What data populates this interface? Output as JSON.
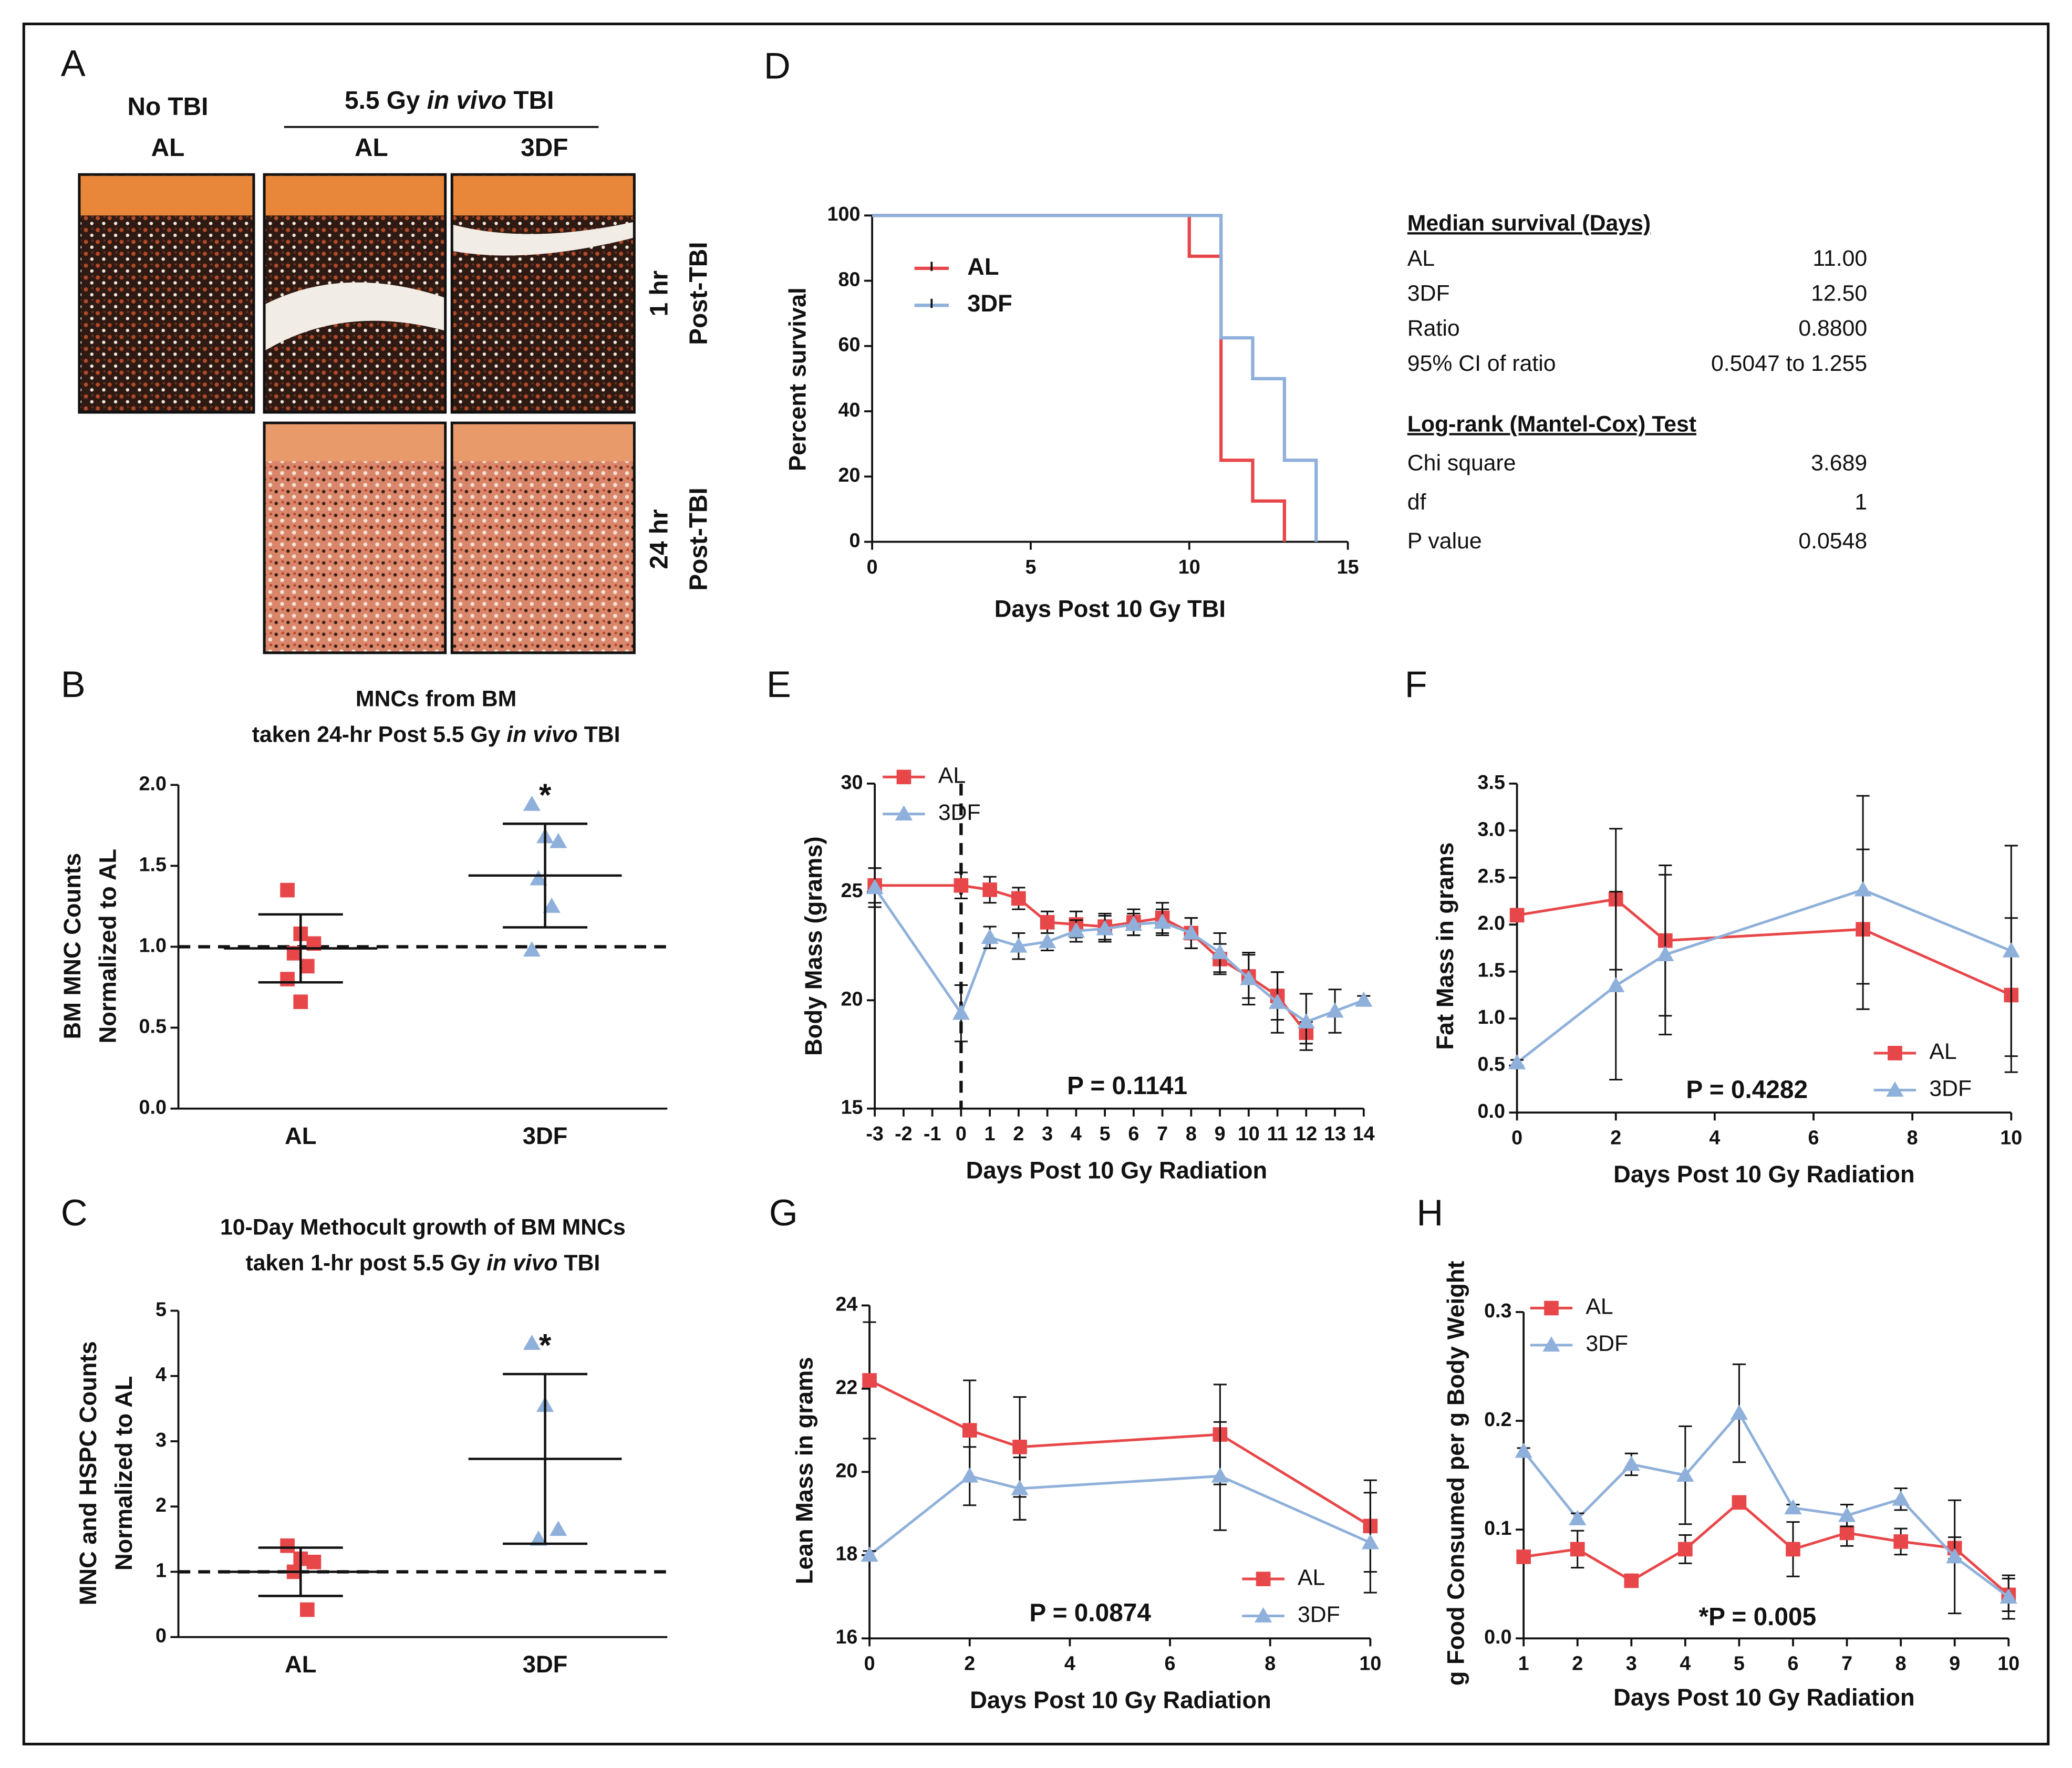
{
  "panel_a": {
    "label": "A",
    "no_tbi": "No TBI",
    "no_tbi_group": "AL",
    "treatment": [
      "5.5 Gy ",
      "in vivo",
      " TBI"
    ],
    "groups": [
      "AL",
      "3DF"
    ],
    "rows": [
      [
        "1 hr",
        "Post-TBI"
      ],
      [
        "24 hr",
        "Post-TBI"
      ]
    ]
  },
  "chart_data": [
    {
      "panel": "B",
      "type": "dot",
      "title": [
        [
          "MNCs from BM"
        ],
        [
          "taken 24-hr Post 5.5 Gy ",
          "in vivo",
          " TBI"
        ]
      ],
      "ylabel": [
        "BM MNC Counts",
        "Normalized to AL"
      ],
      "categories": [
        "AL",
        "3DF"
      ],
      "groups": [
        {
          "color": "#e8474a",
          "marker": "square",
          "values": [
            1.35,
            1.08,
            1.02,
            0.96,
            0.88,
            0.8,
            0.66
          ],
          "mean": 0.99,
          "sd": 0.21
        },
        {
          "color": "#8fb0da",
          "marker": "triangle",
          "values": [
            1.88,
            1.68,
            1.65,
            1.42,
            1.25,
            0.98
          ],
          "mean": 1.44,
          "sd": 0.32
        }
      ],
      "reference_line": 1,
      "annotation": "*",
      "ylim": [
        0,
        2
      ],
      "yticks": [
        {
          "value": 0,
          "label": "0.0"
        },
        0.5,
        {
          "value": 1,
          "label": "1.0"
        },
        1.5,
        {
          "value": 2,
          "label": "2.0"
        }
      ]
    },
    {
      "panel": "C",
      "type": "dot",
      "title": [
        [
          "10-Day Methocult growth of BM MNCs"
        ],
        [
          "taken 1-hr post 5.5 Gy ",
          "in vivo",
          " TBI"
        ]
      ],
      "ylabel": [
        "MNC and  HSPC Counts",
        "Normalized to AL"
      ],
      "categories": [
        "AL",
        "3DF"
      ],
      "groups": [
        {
          "color": "#e8474a",
          "marker": "square",
          "values": [
            1.4,
            1.2,
            1.15,
            1.0,
            0.42
          ],
          "mean": 1.0,
          "sd": 0.37
        },
        {
          "color": "#8fb0da",
          "marker": "triangle",
          "values": [
            4.5,
            3.55,
            1.65,
            1.5
          ],
          "mean": 2.73,
          "sd": 1.3
        }
      ],
      "reference_line": 1,
      "annotation": "*",
      "ylim": [
        0,
        5
      ],
      "yticks": [
        0,
        1,
        2,
        3,
        4,
        5
      ]
    },
    {
      "panel": "D",
      "type": "step",
      "xlabel": "Days Post 10 Gy TBI",
      "ylabel": "Percent survival",
      "series": [
        {
          "name": "AL",
          "color": "#e8474a",
          "x": [
            0,
            10,
            11,
            12,
            13
          ],
          "values": [
            100,
            87.5,
            25,
            12.5,
            0
          ]
        },
        {
          "name": "3DF",
          "color": "#8fb0da",
          "x": [
            0,
            11,
            12,
            13,
            14
          ],
          "values": [
            100,
            62.5,
            50,
            25,
            0
          ]
        }
      ],
      "xlim": [
        0,
        15
      ],
      "xticks": [
        0,
        5,
        10,
        15
      ],
      "ylim": [
        0,
        100
      ],
      "yticks": [
        0,
        20,
        40,
        60,
        80,
        100
      ],
      "stats": [
        {
          "title": "Median survival (Days)",
          "rows": [
            {
              "label": "AL",
              "value": "11.00",
              "color": "#e8474a"
            },
            {
              "label": "3DF",
              "value": "12.50",
              "color": "#8fb0da"
            },
            {
              "label": "Ratio",
              "value": "0.8800"
            },
            {
              "label": "95% CI of ratio",
              "value": "0.5047 to 1.255"
            }
          ]
        },
        {
          "title": "Log-rank (Mantel-Cox) Test",
          "rows": [
            {
              "label": "Chi square",
              "value": "3.689"
            },
            {
              "label": "df",
              "value": "1"
            },
            {
              "label": "P value",
              "value": "0.0548"
            }
          ]
        }
      ]
    },
    {
      "panel": "E",
      "type": "line",
      "xlabel": "Days Post 10 Gy Radiation",
      "ylabel": "Body Mass (grams)",
      "annotation": "P = 0.1141",
      "vline": 0,
      "series": [
        {
          "name": "AL",
          "color": "#e8474a",
          "marker": "square",
          "x": [
            -3,
            0,
            1,
            2,
            3,
            4,
            5,
            6,
            7,
            8,
            9,
            10,
            11,
            12
          ],
          "values": [
            25.3,
            25.3,
            25.1,
            24.7,
            23.6,
            23.5,
            23.4,
            23.6,
            23.8,
            23.1,
            21.9,
            21.1,
            20.2,
            18.5
          ],
          "errors": [
            0.8,
            0.6,
            0.6,
            0.5,
            0.5,
            0.6,
            0.6,
            0.6,
            0.7,
            0.7,
            0.7,
            1.0,
            1.1,
            0.5
          ]
        },
        {
          "name": "3DF",
          "color": "#8fb0da",
          "marker": "triangle",
          "x": [
            -3,
            0,
            1,
            2,
            3,
            4,
            5,
            6,
            7,
            8,
            9,
            10,
            11,
            12,
            13,
            14
          ],
          "values": [
            25.2,
            19.4,
            22.9,
            22.5,
            22.7,
            23.2,
            23.3,
            23.5,
            23.6,
            23.1,
            22.2,
            21.0,
            19.9,
            19.0,
            19.5,
            20.0
          ],
          "errors": [
            0.9,
            1.3,
            0.5,
            0.6,
            0.4,
            0.5,
            0.6,
            0.5,
            0.6,
            0.7,
            0.9,
            1.2,
            1.4,
            1.3,
            1.0,
            0.2
          ]
        }
      ],
      "xlim": [
        -3,
        14
      ],
      "xticks": [
        -3,
        -2,
        -1,
        0,
        1,
        2,
        3,
        4,
        5,
        6,
        7,
        8,
        9,
        10,
        11,
        12,
        13,
        14
      ],
      "ylim": [
        15,
        30
      ],
      "yticks": [
        15,
        20,
        25,
        30
      ]
    },
    {
      "panel": "F",
      "type": "line",
      "xlabel": "Days Post 10 Gy Radiation",
      "ylabel": "Fat Mass in grams",
      "annotation": "P = 0.4282",
      "series": [
        {
          "name": "AL",
          "color": "#e8474a",
          "marker": "square",
          "x": [
            0,
            2,
            3,
            7,
            10
          ],
          "values": [
            2.1,
            2.27,
            1.83,
            1.95,
            1.25
          ],
          "errors": [
            0.03,
            0.75,
            0.8,
            0.85,
            0.82
          ]
        },
        {
          "name": "3DF",
          "color": "#8fb0da",
          "marker": "triangle",
          "x": [
            0,
            2,
            3,
            7,
            10
          ],
          "values": [
            0.53,
            1.35,
            1.68,
            2.37,
            1.72
          ],
          "errors": [
            0.03,
            1.0,
            0.85,
            1.0,
            1.12
          ]
        }
      ],
      "xlim": [
        0,
        10
      ],
      "xticks": [
        0,
        2,
        4,
        6,
        8,
        10
      ],
      "ylim": [
        0,
        3.5
      ],
      "yticks": [
        {
          "value": 0,
          "label": "0.0"
        },
        0.5,
        {
          "value": 1,
          "label": "1.0"
        },
        1.5,
        {
          "value": 2,
          "label": "2.0"
        },
        2.5,
        {
          "value": 3,
          "label": "3.0"
        },
        3.5
      ]
    },
    {
      "panel": "G",
      "type": "line",
      "xlabel": "Days Post 10 Gy Radiation",
      "ylabel": "Lean Mass in grams",
      "annotation": "P = 0.0874",
      "series": [
        {
          "name": "AL",
          "color": "#e8474a",
          "marker": "square",
          "x": [
            0,
            2,
            3,
            7,
            10
          ],
          "values": [
            22.2,
            21.0,
            20.6,
            20.9,
            18.7
          ],
          "errors": [
            1.4,
            1.2,
            1.2,
            1.2,
            1.1
          ]
        },
        {
          "name": "3DF",
          "color": "#8fb0da",
          "marker": "triangle",
          "x": [
            0,
            2,
            3,
            7,
            10
          ],
          "values": [
            18.0,
            19.9,
            19.6,
            19.9,
            18.3
          ],
          "errors": [
            0.1,
            0.7,
            0.75,
            1.3,
            1.2
          ]
        }
      ],
      "xlim": [
        0,
        10
      ],
      "xticks": [
        0,
        2,
        4,
        6,
        8,
        10
      ],
      "ylim": [
        16,
        24
      ],
      "yticks": [
        16,
        18,
        20,
        22,
        24
      ]
    },
    {
      "panel": "H",
      "type": "line",
      "xlabel": "Days Post 10 Gy Radiation",
      "ylabel": "g Food Consumed per g Body Weight",
      "annotation": "*P = 0.005",
      "series": [
        {
          "name": "AL",
          "color": "#e8474a",
          "marker": "square",
          "x": [
            1,
            2,
            3,
            4,
            5,
            6,
            7,
            8,
            9,
            10
          ],
          "values": [
            0.075,
            0.082,
            0.053,
            0.082,
            0.125,
            0.082,
            0.097,
            0.089,
            0.083,
            0.04
          ],
          "errors": [
            0.005,
            0.017,
            0.003,
            0.013,
            0.003,
            0.025,
            0.012,
            0.012,
            0.01,
            0.015
          ]
        },
        {
          "name": "3DF",
          "color": "#8fb0da",
          "marker": "triangle",
          "x": [
            1,
            2,
            3,
            4,
            5,
            6,
            7,
            8,
            9,
            10
          ],
          "values": [
            0.172,
            0.11,
            0.16,
            0.15,
            0.207,
            0.12,
            0.113,
            0.128,
            0.075,
            0.038
          ],
          "errors": [
            0.003,
            0.005,
            0.01,
            0.045,
            0.045,
            0.003,
            0.01,
            0.01,
            0.052,
            0.02
          ]
        }
      ],
      "xlim": [
        1,
        10
      ],
      "xticks": [
        1,
        2,
        3,
        4,
        5,
        6,
        7,
        8,
        9,
        10
      ],
      "ylim": [
        0,
        0.3
      ],
      "yticks": [
        {
          "value": 0,
          "label": "0.0"
        },
        0.1,
        0.2,
        0.3
      ]
    }
  ]
}
